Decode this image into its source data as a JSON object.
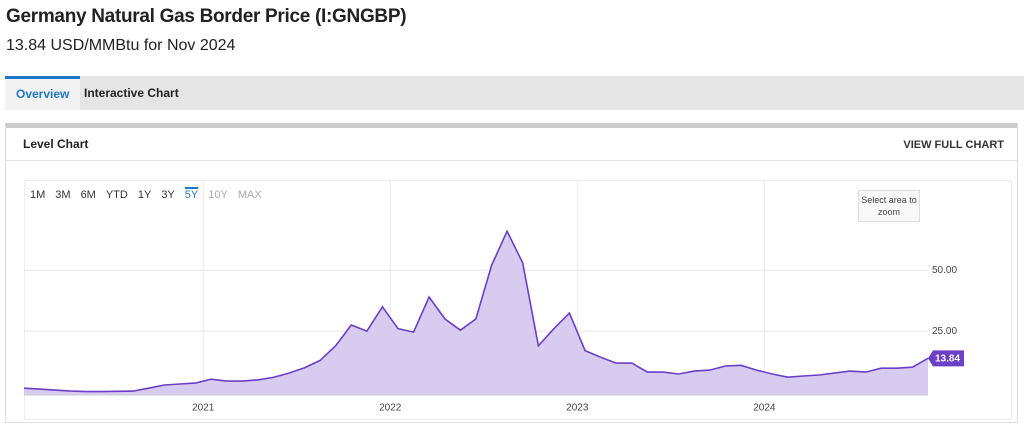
{
  "header": {
    "title": "Germany Natural Gas Border Price (I:GNGBP)",
    "subtitle": "13.84 USD/MMBtu for Nov 2024"
  },
  "tabs": [
    "Overview",
    "Interactive Chart"
  ],
  "panel": {
    "title": "Level Chart",
    "link": "VIEW FULL CHART",
    "ranges": [
      "1M",
      "3M",
      "6M",
      "YTD",
      "1Y",
      "3Y",
      "5Y",
      "10Y",
      "MAX"
    ],
    "zoom_hint": "Select area to zoom"
  },
  "chart_data": {
    "type": "area",
    "x": [
      2020.042,
      2020.125,
      2020.208,
      2020.292,
      2020.375,
      2020.458,
      2020.542,
      2020.625,
      2020.708,
      2020.792,
      2020.875,
      2020.958,
      2021.042,
      2021.125,
      2021.208,
      2021.292,
      2021.375,
      2021.458,
      2021.542,
      2021.625,
      2021.708,
      2021.792,
      2021.875,
      2021.958,
      2022.042,
      2022.125,
      2022.208,
      2022.292,
      2022.375,
      2022.458,
      2022.542,
      2022.625,
      2022.708,
      2022.792,
      2022.875,
      2022.958,
      2023.042,
      2023.125,
      2023.208,
      2023.292,
      2023.375,
      2023.458,
      2023.542,
      2023.625,
      2023.708,
      2023.792,
      2023.875,
      2023.958,
      2024.042,
      2024.125,
      2024.208,
      2024.292,
      2024.375,
      2024.458,
      2024.542,
      2024.625,
      2024.708,
      2024.792,
      2024.875
    ],
    "series": [
      {
        "name": "Germany Natural Gas Border Price",
        "color": "#6b3fc8",
        "fill": "#d7cbef",
        "values": [
          1.6,
          1.2,
          0.8,
          0.4,
          0.2,
          0.2,
          0.3,
          0.4,
          1.6,
          2.9,
          3.3,
          3.7,
          5.3,
          4.5,
          4.5,
          5.0,
          6.0,
          7.8,
          10.0,
          13.0,
          19.0,
          27.5,
          25.0,
          35.0,
          26.0,
          24.6,
          39.0,
          30.0,
          25.4,
          30.0,
          52.0,
          66.0,
          53.0,
          19.0,
          26.0,
          32.4,
          17.0,
          14.3,
          11.9,
          11.9,
          8.2,
          8.2,
          7.4,
          8.6,
          9.0,
          10.7,
          11.0,
          9.0,
          7.4,
          6.1,
          6.6,
          7.0,
          7.8,
          8.6,
          8.2,
          9.8,
          9.8,
          10.2,
          13.84
        ]
      }
    ],
    "xlim": [
      2020.042,
      2024.875
    ],
    "xticks": [
      2021,
      2022,
      2023,
      2024
    ],
    "ylim": [
      -1.2,
      87
    ],
    "yticks": [
      {
        "value": 25,
        "label": "25.00"
      },
      {
        "value": 50,
        "label": "50.00"
      }
    ],
    "grid": true
  }
}
